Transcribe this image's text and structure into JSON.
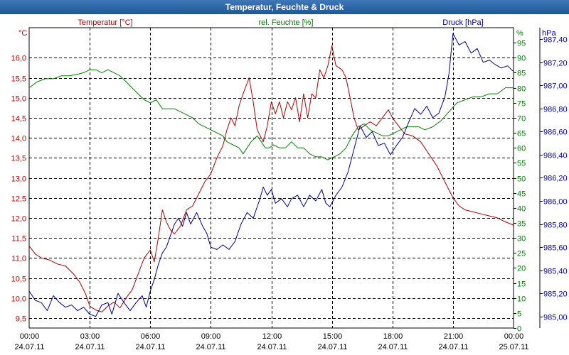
{
  "window": {
    "title": "Temperatur, Feuchte & Druck"
  },
  "chart_data": {
    "type": "line",
    "title": "Temperatur, Feuchte & Druck",
    "x_time_labels": [
      "00:00",
      "03:00",
      "06:00",
      "09:00",
      "12:00",
      "15:00",
      "18:00",
      "21:00",
      "00:00"
    ],
    "x_date_labels": [
      "24.07.11",
      "24.07.11",
      "24.07.11",
      "24.07.11",
      "24.07.11",
      "24.07.11",
      "24.07.11",
      "24.07.11",
      "25.07.11"
    ],
    "x_range_hours": [
      0,
      24
    ],
    "grid": true,
    "axes": {
      "left": {
        "unit": "°C",
        "min": 9.25,
        "max": 16.75,
        "ticks": [
          "9,5",
          "10,0",
          "10,5",
          "11,0",
          "11,5",
          "12,0",
          "12,5",
          "13,0",
          "13,5",
          "14,0",
          "14,5",
          "15,0",
          "15,5",
          "16,0"
        ],
        "color": "#c00000"
      },
      "middle": {
        "unit": "%",
        "min": 0,
        "max": 100,
        "ticks": [
          "0",
          "5",
          "10",
          "15",
          "20",
          "25",
          "30",
          "35",
          "40",
          "45",
          "50",
          "55",
          "60",
          "65",
          "70",
          "75",
          "80",
          "85",
          "90",
          "95"
        ],
        "color": "#008000"
      },
      "right": {
        "unit": "hPa",
        "min": 984.9,
        "max": 987.5,
        "ticks": [
          "985,00",
          "985,20",
          "985,40",
          "985,60",
          "985,80",
          "986,00",
          "986,20",
          "986,40",
          "986,60",
          "986,80",
          "987,00",
          "987,20",
          "987,40"
        ],
        "color": "#0000aa"
      }
    },
    "series": [
      {
        "name": "Temperatur [°C]",
        "axis": "left",
        "color": "#b00000",
        "points": [
          [
            0,
            11.3
          ],
          [
            0.3,
            11.1
          ],
          [
            0.6,
            11.0
          ],
          [
            1.0,
            10.95
          ],
          [
            1.4,
            10.85
          ],
          [
            1.8,
            10.8
          ],
          [
            2.2,
            10.6
          ],
          [
            2.5,
            10.4
          ],
          [
            2.8,
            10.1
          ],
          [
            3.0,
            9.8
          ],
          [
            3.3,
            9.7
          ],
          [
            3.6,
            9.65
          ],
          [
            3.9,
            9.8
          ],
          [
            4.2,
            9.9
          ],
          [
            4.5,
            9.75
          ],
          [
            4.8,
            10.0
          ],
          [
            5.1,
            10.2
          ],
          [
            5.4,
            10.6
          ],
          [
            5.7,
            11.0
          ],
          [
            6.0,
            11.2
          ],
          [
            6.2,
            10.9
          ],
          [
            6.4,
            11.5
          ],
          [
            6.6,
            12.2
          ],
          [
            6.8,
            11.9
          ],
          [
            7.0,
            11.7
          ],
          [
            7.2,
            11.6
          ],
          [
            7.5,
            11.8
          ],
          [
            7.8,
            12.2
          ],
          [
            8.1,
            12.3
          ],
          [
            8.4,
            12.6
          ],
          [
            8.7,
            12.9
          ],
          [
            9.0,
            13.1
          ],
          [
            9.3,
            13.5
          ],
          [
            9.6,
            13.8
          ],
          [
            9.8,
            14.2
          ],
          [
            10.0,
            14.5
          ],
          [
            10.2,
            14.3
          ],
          [
            10.4,
            14.8
          ],
          [
            10.6,
            15.1
          ],
          [
            10.9,
            15.5
          ],
          [
            11.1,
            14.9
          ],
          [
            11.3,
            14.2
          ],
          [
            11.6,
            13.9
          ],
          [
            11.8,
            14.3
          ],
          [
            12.0,
            14.9
          ],
          [
            12.2,
            14.6
          ],
          [
            12.4,
            14.9
          ],
          [
            12.6,
            14.5
          ],
          [
            12.8,
            14.9
          ],
          [
            13.0,
            14.7
          ],
          [
            13.2,
            15.0
          ],
          [
            13.4,
            14.4
          ],
          [
            13.6,
            15.1
          ],
          [
            13.8,
            14.5
          ],
          [
            14.0,
            15.1
          ],
          [
            14.2,
            15.0
          ],
          [
            14.4,
            15.7
          ],
          [
            14.6,
            15.5
          ],
          [
            14.8,
            15.8
          ],
          [
            15.0,
            16.3
          ],
          [
            15.2,
            15.8
          ],
          [
            15.5,
            15.7
          ],
          [
            15.7,
            15.5
          ],
          [
            15.9,
            15.0
          ],
          [
            16.1,
            14.5
          ],
          [
            16.3,
            14.2
          ],
          [
            16.6,
            14.3
          ],
          [
            16.9,
            14.4
          ],
          [
            17.2,
            14.3
          ],
          [
            17.5,
            14.5
          ],
          [
            17.8,
            14.7
          ],
          [
            18.0,
            14.5
          ],
          [
            18.3,
            14.3
          ],
          [
            18.6,
            14.1
          ],
          [
            19.0,
            14.05
          ],
          [
            19.4,
            13.9
          ],
          [
            19.8,
            13.6
          ],
          [
            20.2,
            13.3
          ],
          [
            20.6,
            12.9
          ],
          [
            21.0,
            12.5
          ],
          [
            21.3,
            12.3
          ],
          [
            21.6,
            12.2
          ],
          [
            22.0,
            12.15
          ],
          [
            22.4,
            12.1
          ],
          [
            22.8,
            12.05
          ],
          [
            23.2,
            12.0
          ],
          [
            23.6,
            11.9
          ],
          [
            24.0,
            11.82
          ]
        ]
      },
      {
        "name": "rel. Feuchte [%]",
        "axis": "middle",
        "color": "#008000",
        "points": [
          [
            0,
            80
          ],
          [
            0.4,
            82
          ],
          [
            0.8,
            83
          ],
          [
            1.2,
            83
          ],
          [
            1.6,
            84
          ],
          [
            2.0,
            84
          ],
          [
            2.4,
            84.5
          ],
          [
            2.7,
            85
          ],
          [
            3.0,
            86
          ],
          [
            3.3,
            86
          ],
          [
            3.6,
            85
          ],
          [
            3.9,
            86
          ],
          [
            4.2,
            85
          ],
          [
            4.5,
            84
          ],
          [
            4.8,
            82
          ],
          [
            5.1,
            80
          ],
          [
            5.4,
            78
          ],
          [
            5.7,
            76
          ],
          [
            6.0,
            75
          ],
          [
            6.3,
            76
          ],
          [
            6.6,
            73
          ],
          [
            6.9,
            73
          ],
          [
            7.2,
            73
          ],
          [
            7.5,
            72
          ],
          [
            7.8,
            71
          ],
          [
            8.1,
            70
          ],
          [
            8.4,
            68
          ],
          [
            8.7,
            67
          ],
          [
            9.0,
            66
          ],
          [
            9.3,
            65
          ],
          [
            9.6,
            64
          ],
          [
            9.8,
            62
          ],
          [
            10.1,
            61
          ],
          [
            10.4,
            60
          ],
          [
            10.6,
            58
          ],
          [
            10.8,
            60
          ],
          [
            11.0,
            62
          ],
          [
            11.3,
            64
          ],
          [
            11.5,
            62
          ],
          [
            11.7,
            60
          ],
          [
            11.9,
            60
          ],
          [
            12.1,
            61
          ],
          [
            12.4,
            60
          ],
          [
            12.7,
            60
          ],
          [
            13.0,
            62
          ],
          [
            13.3,
            60
          ],
          [
            13.6,
            60
          ],
          [
            13.9,
            58
          ],
          [
            14.2,
            57
          ],
          [
            14.5,
            57
          ],
          [
            14.8,
            56
          ],
          [
            15.1,
            57
          ],
          [
            15.4,
            58
          ],
          [
            15.7,
            60
          ],
          [
            16.0,
            64
          ],
          [
            16.3,
            67
          ],
          [
            16.6,
            68
          ],
          [
            16.9,
            66
          ],
          [
            17.2,
            65
          ],
          [
            17.5,
            64
          ],
          [
            17.8,
            64
          ],
          [
            18.1,
            65
          ],
          [
            18.4,
            66
          ],
          [
            18.7,
            67
          ],
          [
            19.0,
            67
          ],
          [
            19.3,
            67
          ],
          [
            19.6,
            66
          ],
          [
            20.0,
            67
          ],
          [
            20.4,
            69
          ],
          [
            20.8,
            72
          ],
          [
            21.2,
            75
          ],
          [
            21.6,
            76
          ],
          [
            22.0,
            77
          ],
          [
            22.4,
            77
          ],
          [
            22.8,
            78
          ],
          [
            23.2,
            78
          ],
          [
            23.6,
            80
          ],
          [
            24.0,
            80
          ]
        ]
      },
      {
        "name": "Druck [hPa]",
        "axis": "right",
        "color": "#000090",
        "points": [
          [
            0,
            985.22
          ],
          [
            0.3,
            985.14
          ],
          [
            0.6,
            985.12
          ],
          [
            0.9,
            985.05
          ],
          [
            1.2,
            985.18
          ],
          [
            1.5,
            985.12
          ],
          [
            1.8,
            985.08
          ],
          [
            2.1,
            985.1
          ],
          [
            2.4,
            985.05
          ],
          [
            2.7,
            985.08
          ],
          [
            3.0,
            985.02
          ],
          [
            3.3,
            985.0
          ],
          [
            3.6,
            985.1
          ],
          [
            3.9,
            985.12
          ],
          [
            4.1,
            985.02
          ],
          [
            4.4,
            985.2
          ],
          [
            4.7,
            985.12
          ],
          [
            5.0,
            985.05
          ],
          [
            5.3,
            985.12
          ],
          [
            5.6,
            985.18
          ],
          [
            5.8,
            985.08
          ],
          [
            6.0,
            985.22
          ],
          [
            6.2,
            985.32
          ],
          [
            6.4,
            985.45
          ],
          [
            6.6,
            985.55
          ],
          [
            6.8,
            985.6
          ],
          [
            7.0,
            985.7
          ],
          [
            7.2,
            985.8
          ],
          [
            7.4,
            985.85
          ],
          [
            7.6,
            985.78
          ],
          [
            7.8,
            985.9
          ],
          [
            8.0,
            985.8
          ],
          [
            8.3,
            985.9
          ],
          [
            8.6,
            985.78
          ],
          [
            8.8,
            985.72
          ],
          [
            9.0,
            985.6
          ],
          [
            9.3,
            985.58
          ],
          [
            9.6,
            985.62
          ],
          [
            9.9,
            985.58
          ],
          [
            10.2,
            985.65
          ],
          [
            10.5,
            985.8
          ],
          [
            10.8,
            985.9
          ],
          [
            11.1,
            985.85
          ],
          [
            11.4,
            986.0
          ],
          [
            11.6,
            986.12
          ],
          [
            11.8,
            986.05
          ],
          [
            12.0,
            986.1
          ],
          [
            12.2,
            985.98
          ],
          [
            12.5,
            986.02
          ],
          [
            12.8,
            985.95
          ],
          [
            13.0,
            986.02
          ],
          [
            13.3,
            986.05
          ],
          [
            13.6,
            985.95
          ],
          [
            13.9,
            986.05
          ],
          [
            14.2,
            986.0
          ],
          [
            14.5,
            986.1
          ],
          [
            14.7,
            985.98
          ],
          [
            14.9,
            985.95
          ],
          [
            15.2,
            986.05
          ],
          [
            15.5,
            986.12
          ],
          [
            15.8,
            986.25
          ],
          [
            16.1,
            986.45
          ],
          [
            16.4,
            986.65
          ],
          [
            16.7,
            986.55
          ],
          [
            17.0,
            986.6
          ],
          [
            17.3,
            986.48
          ],
          [
            17.6,
            986.5
          ],
          [
            17.9,
            986.4
          ],
          [
            18.2,
            986.48
          ],
          [
            18.5,
            986.55
          ],
          [
            18.8,
            986.68
          ],
          [
            19.1,
            986.8
          ],
          [
            19.4,
            986.75
          ],
          [
            19.7,
            986.82
          ],
          [
            20.0,
            986.72
          ],
          [
            20.3,
            986.76
          ],
          [
            20.6,
            986.9
          ],
          [
            20.8,
            987.1
          ],
          [
            21.0,
            987.45
          ],
          [
            21.3,
            987.35
          ],
          [
            21.6,
            987.38
          ],
          [
            21.9,
            987.28
          ],
          [
            22.2,
            987.32
          ],
          [
            22.5,
            987.2
          ],
          [
            22.8,
            987.22
          ],
          [
            23.1,
            987.18
          ],
          [
            23.4,
            987.15
          ],
          [
            23.7,
            987.17
          ],
          [
            24.0,
            987.12
          ]
        ]
      }
    ]
  }
}
